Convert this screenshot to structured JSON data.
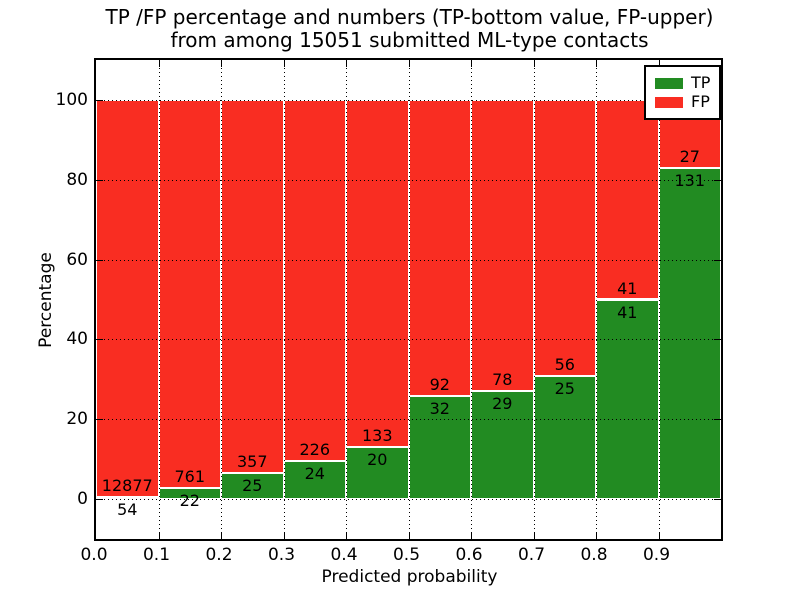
{
  "figure": {
    "title_line1": "TP /FP percentage and numbers (TP-bottom value, FP-upper)",
    "title_line2": "from among 15051 submitted ML-type contacts"
  },
  "chart_data": {
    "type": "bar",
    "variant": "stacked_percentage_histogram",
    "title": "TP /FP percentage and numbers (TP-bottom value, FP-upper)\nfrom among 15051 submitted ML-type contacts",
    "xlabel": "Predicted probability",
    "ylabel": "Percentage",
    "total_submitted": 15051,
    "bin_width": 0.1,
    "categories": [
      "0.0-0.1",
      "0.1-0.2",
      "0.2-0.3",
      "0.3-0.4",
      "0.4-0.5",
      "0.5-0.6",
      "0.6-0.7",
      "0.7-0.8",
      "0.8-0.9",
      "0.9-1.0"
    ],
    "series": [
      {
        "name": "TP",
        "color": "#228b22",
        "counts": [
          54,
          22,
          25,
          24,
          20,
          32,
          29,
          25,
          41,
          131
        ],
        "percent_of_bin": [
          0.42,
          2.81,
          6.54,
          9.6,
          13.07,
          25.81,
          27.1,
          30.86,
          50.0,
          82.91
        ]
      },
      {
        "name": "FP",
        "color": "#f92d22",
        "counts": [
          12877,
          761,
          357,
          226,
          133,
          92,
          78,
          56,
          41,
          27
        ],
        "percent_of_bin": [
          99.58,
          97.19,
          93.46,
          90.4,
          86.93,
          74.19,
          72.9,
          69.14,
          50.0,
          17.09
        ]
      }
    ],
    "xlim": [
      0.0,
      1.0
    ],
    "ylim": [
      -10,
      110
    ],
    "xticks": [
      0.0,
      0.1,
      0.2,
      0.3,
      0.4,
      0.5,
      0.6,
      0.7,
      0.8,
      0.9
    ],
    "yticks": [
      0,
      20,
      40,
      60,
      80,
      100
    ],
    "xtick_labels": [
      "0.0",
      "0.1",
      "0.2",
      "0.3",
      "0.4",
      "0.5",
      "0.6",
      "0.7",
      "0.8",
      "0.9"
    ],
    "ytick_labels": [
      "0",
      "20",
      "40",
      "60",
      "80",
      "100"
    ],
    "grid": "dotted",
    "legend_position": "upper right"
  },
  "legend": {
    "items": [
      {
        "label": "TP",
        "color": "#228b22"
      },
      {
        "label": "FP",
        "color": "#f92d22"
      }
    ]
  }
}
